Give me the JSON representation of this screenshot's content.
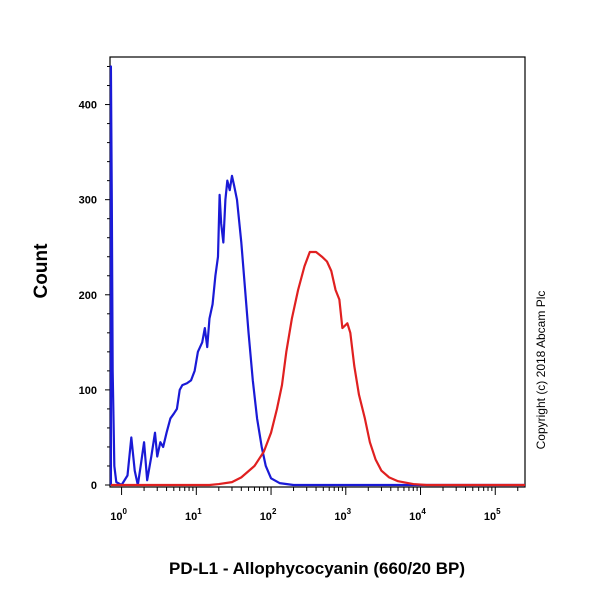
{
  "chart_data": {
    "type": "line",
    "xlabel": "PD-L1 - Allophycocyanin (660/20 BP)",
    "ylabel": "Count",
    "x_scale": "log",
    "xlim": [
      0.7,
      250000
    ],
    "ylim": [
      0,
      450
    ],
    "y_ticks": [
      0,
      100,
      200,
      300,
      400
    ],
    "x_ticks": [
      {
        "value": 1,
        "base": "10",
        "exp": "0"
      },
      {
        "value": 10,
        "base": "10",
        "exp": "1"
      },
      {
        "value": 100,
        "base": "10",
        "exp": "2"
      },
      {
        "value": 1000,
        "base": "10",
        "exp": "3"
      },
      {
        "value": 10000,
        "base": "10",
        "exp": "4"
      },
      {
        "value": 100000,
        "base": "10",
        "exp": "5"
      }
    ],
    "copyright": "Copyright (c) 2018 Abcam Plc",
    "series": [
      {
        "color": "#1a1ad6",
        "points": [
          [
            0.72,
            0
          ],
          [
            0.72,
            440
          ],
          [
            0.74,
            300
          ],
          [
            0.76,
            120
          ],
          [
            0.8,
            20
          ],
          [
            0.85,
            3
          ],
          [
            1.0,
            0
          ],
          [
            1.2,
            10
          ],
          [
            1.35,
            50
          ],
          [
            1.5,
            15
          ],
          [
            1.65,
            0
          ],
          [
            1.8,
            20
          ],
          [
            2.0,
            45
          ],
          [
            2.2,
            5
          ],
          [
            2.5,
            30
          ],
          [
            2.8,
            55
          ],
          [
            3.0,
            30
          ],
          [
            3.3,
            45
          ],
          [
            3.6,
            40
          ],
          [
            4.0,
            55
          ],
          [
            4.5,
            70
          ],
          [
            5.0,
            75
          ],
          [
            5.5,
            80
          ],
          [
            6.0,
            100
          ],
          [
            6.5,
            105
          ],
          [
            7.5,
            107
          ],
          [
            8.5,
            110
          ],
          [
            9.5,
            120
          ],
          [
            10.5,
            140
          ],
          [
            12,
            150
          ],
          [
            13,
            165
          ],
          [
            14,
            145
          ],
          [
            15,
            175
          ],
          [
            16.5,
            190
          ],
          [
            18,
            220
          ],
          [
            19.5,
            240
          ],
          [
            20.5,
            305
          ],
          [
            21.5,
            275
          ],
          [
            23,
            255
          ],
          [
            24.5,
            300
          ],
          [
            26,
            320
          ],
          [
            28,
            310
          ],
          [
            30,
            325
          ],
          [
            32,
            315
          ],
          [
            35,
            300
          ],
          [
            40,
            255
          ],
          [
            45,
            205
          ],
          [
            50,
            160
          ],
          [
            57,
            110
          ],
          [
            65,
            70
          ],
          [
            75,
            40
          ],
          [
            85,
            20
          ],
          [
            100,
            7
          ],
          [
            130,
            2
          ],
          [
            200,
            0
          ],
          [
            250000,
            0
          ]
        ]
      },
      {
        "color": "#e02020",
        "points": [
          [
            0.72,
            0
          ],
          [
            15,
            0
          ],
          [
            20,
            1
          ],
          [
            30,
            3
          ],
          [
            40,
            8
          ],
          [
            60,
            20
          ],
          [
            80,
            35
          ],
          [
            100,
            55
          ],
          [
            120,
            80
          ],
          [
            140,
            105
          ],
          [
            160,
            140
          ],
          [
            190,
            175
          ],
          [
            230,
            205
          ],
          [
            280,
            230
          ],
          [
            330,
            245
          ],
          [
            400,
            245
          ],
          [
            480,
            240
          ],
          [
            560,
            235
          ],
          [
            640,
            225
          ],
          [
            730,
            205
          ],
          [
            820,
            195
          ],
          [
            900,
            165
          ],
          [
            1050,
            170
          ],
          [
            1150,
            160
          ],
          [
            1300,
            125
          ],
          [
            1500,
            95
          ],
          [
            1800,
            70
          ],
          [
            2100,
            45
          ],
          [
            2500,
            27
          ],
          [
            3000,
            15
          ],
          [
            3800,
            8
          ],
          [
            5000,
            4
          ],
          [
            8000,
            1
          ],
          [
            12000,
            0
          ],
          [
            250000,
            0
          ]
        ]
      }
    ]
  }
}
